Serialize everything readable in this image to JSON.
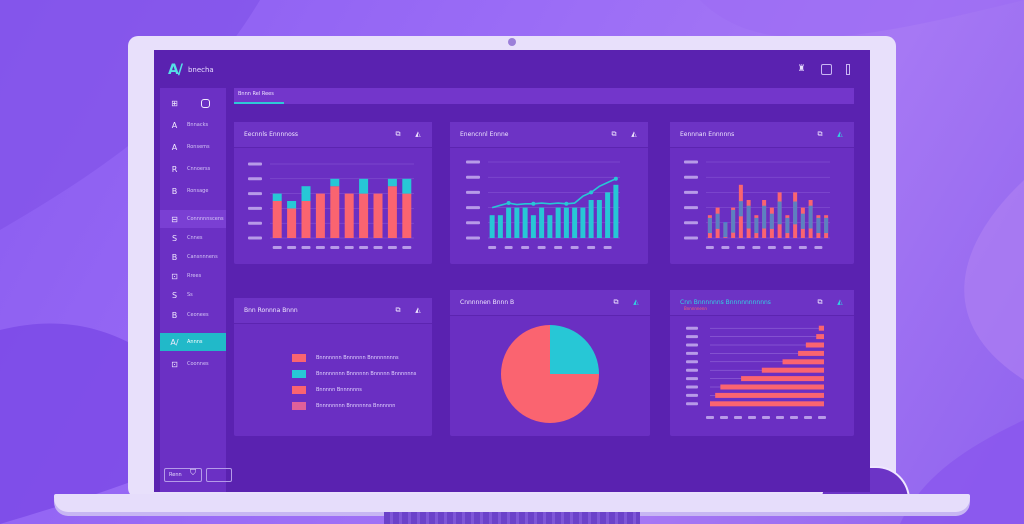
{
  "app": {
    "logo_mark": "A/",
    "logo_text": "bnecha"
  },
  "colors": {
    "coral": "#fa6470",
    "cyan": "#27c7d6",
    "pink": "#e0609a",
    "panel": "#6a2fc2",
    "screen": "#5a22b0"
  },
  "topbar": {
    "icons": [
      "user-badge-icon",
      "square-icon",
      "bar-icon"
    ]
  },
  "sidebar": {
    "items": [
      {
        "icon": "grid-icon",
        "glyph": "⊞",
        "label": ""
      },
      {
        "icon": "person-icon",
        "glyph": "A",
        "label": "Bnnacks"
      },
      {
        "icon": "person-icon",
        "glyph": "A",
        "label": "Ronsems"
      },
      {
        "icon": "group-icon",
        "glyph": "R",
        "label": "Cnnoerss"
      },
      {
        "icon": "doc-icon",
        "glyph": "B",
        "label": "Ronsage"
      },
      {
        "icon": "chart-icon",
        "glyph": "⊟",
        "label": "Connnnnscens"
      },
      {
        "icon": "link-icon",
        "glyph": "S",
        "label": "Cnnes"
      },
      {
        "icon": "bell-icon",
        "glyph": "B",
        "label": "Cansnnnens"
      },
      {
        "icon": "doc-icon",
        "glyph": "⊡",
        "label": "Rrees"
      },
      {
        "icon": "share-icon",
        "glyph": "S",
        "label": "Ss"
      },
      {
        "icon": "settings-icon",
        "glyph": "B",
        "label": "Ceonees"
      },
      {
        "icon": "app-icon",
        "glyph": "A/",
        "label": "Annns"
      },
      {
        "icon": "exit-icon",
        "glyph": "⊡",
        "label": "Coonnes"
      }
    ],
    "bottom_icon": "shield-icon",
    "footer_buttons": [
      "Renn",
      ""
    ]
  },
  "tabs": {
    "active_label": "Bnnn Rel Rees"
  },
  "panels": {
    "bar_chart": {
      "title": "Eecnnls Ennnnoss",
      "icons": [
        "copy-icon",
        "expand-icon"
      ]
    },
    "line_chart": {
      "title": "Enencnnl Ennne",
      "icons": [
        "copy-icon",
        "expand-icon"
      ]
    },
    "stacked_chart": {
      "title": "Eennnan Ennnnns",
      "icons": [
        "copy-icon",
        "expand-icon"
      ]
    },
    "legend_panel": {
      "title": "Bnn Ronnna Bnnn",
      "icons": [
        "copy-icon",
        "expand-icon"
      ]
    },
    "pie_chart": {
      "title": "Cnnnnnen Bnnn B",
      "icons": [
        "copy-icon",
        "expand-icon"
      ]
    },
    "hbar_chart": {
      "title": "Cnn Bnnnnnns Bnnnnnnnnnns",
      "subtitle": "Bnnnnnenn",
      "icons": [
        "copy-icon",
        "expand-icon"
      ]
    }
  },
  "legend": [
    {
      "label": "Bnnnnnnn Bnnnnnn   Bnnnnnnnns",
      "color": "#fa6470"
    },
    {
      "label": "Bnnnnnnnn Bnnnnnn   Bnnnnn Bnnnnnns",
      "color": "#27c7d6"
    },
    {
      "label": "Bnnnnn Bnnnnnns",
      "color": "#fa6470"
    },
    {
      "label": "Bnnnnnnnn Bnnnnnns Bnnnnnn",
      "color": "#e0609a"
    }
  ],
  "chart_data": [
    {
      "type": "bar",
      "title": "",
      "categories": [
        "c1",
        "c2",
        "c3",
        "c4",
        "c5",
        "c6",
        "c7",
        "c8",
        "c9",
        "c10"
      ],
      "series": [
        {
          "values": [
            5,
            4,
            5,
            6,
            7,
            6,
            6,
            6,
            7,
            6
          ]
        },
        {
          "values": [
            1,
            1,
            2,
            0,
            1,
            0,
            2,
            0,
            1,
            2
          ]
        }
      ],
      "ylim": [
        0,
        10
      ],
      "grid": true
    },
    {
      "type": "bar",
      "title": "",
      "categories": [
        "c1",
        "c2",
        "c3",
        "c4",
        "c5",
        "c6",
        "c7",
        "c8",
        "c9",
        "c10",
        "c11",
        "c12",
        "c13",
        "c14",
        "c15",
        "c16"
      ],
      "series": [
        {
          "values": [
            3,
            3,
            4,
            4,
            4,
            3,
            4,
            3,
            4,
            4,
            4,
            4,
            5,
            5,
            6,
            7
          ]
        }
      ],
      "line": [
        4,
        4.3,
        4.6,
        4.4,
        4.5,
        4.5,
        4.6,
        4.5,
        4.6,
        4.5,
        4.6,
        5.5,
        6,
        6.8,
        7.3,
        7.8
      ],
      "ylim": [
        0,
        10
      ],
      "grid": true
    },
    {
      "type": "bar",
      "title": "",
      "categories": [
        "c1",
        "c2",
        "c3",
        "c4",
        "c5",
        "c6",
        "c7",
        "c8",
        "c9",
        "c10",
        "c11",
        "c12",
        "c13",
        "c14",
        "c15",
        "c16"
      ],
      "series": [
        {
          "values": [
            3,
            4,
            2,
            4,
            7,
            5,
            3,
            5,
            4,
            6,
            3,
            6,
            4,
            5,
            3,
            3
          ]
        },
        {
          "values": [
            2,
            2,
            2,
            3,
            2,
            3,
            2,
            3,
            2,
            3,
            2,
            3,
            2,
            3,
            2,
            2
          ]
        }
      ],
      "ylim": [
        0,
        10
      ],
      "grid": true
    },
    {
      "type": "pie",
      "title": "",
      "slices": [
        {
          "value": 75,
          "color": "#fa6470"
        },
        {
          "value": 25,
          "color": "#27c7d6"
        }
      ]
    },
    {
      "type": "bar",
      "orientation": "horizontal",
      "title": "",
      "categories": [
        "r1",
        "r2",
        "r3",
        "r4",
        "r5",
        "r6",
        "r7",
        "r8",
        "r9",
        "r10"
      ],
      "values": [
        2,
        3,
        7,
        10,
        16,
        24,
        32,
        40,
        42,
        44
      ],
      "xlim": [
        0,
        44
      ],
      "grid": true
    }
  ]
}
